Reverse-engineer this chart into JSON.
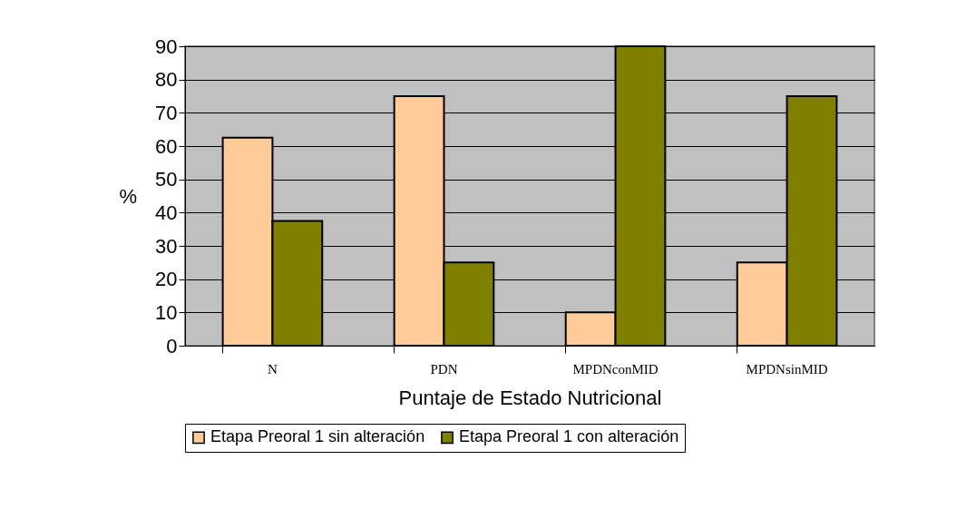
{
  "chart_data": {
    "type": "bar",
    "xlabel": "Puntaje de Estado Nutricional",
    "ylabel": "%",
    "categories": [
      "N",
      "PDN",
      "MPDNconMID",
      "MPDNsinMID"
    ],
    "series": [
      {
        "name": "Etapa Preoral 1 sin alteración",
        "color": "#ffcc99",
        "values": [
          62.5,
          75,
          10,
          25
        ]
      },
      {
        "name": "Etapa Preoral 1 con alteración",
        "color": "#808000",
        "values": [
          37.5,
          25,
          90,
          75
        ]
      }
    ],
    "ylim": [
      0,
      90
    ],
    "yticks": [
      0,
      10,
      20,
      30,
      40,
      50,
      60,
      70,
      80,
      90
    ],
    "grid": "y",
    "legend": "bottom"
  }
}
